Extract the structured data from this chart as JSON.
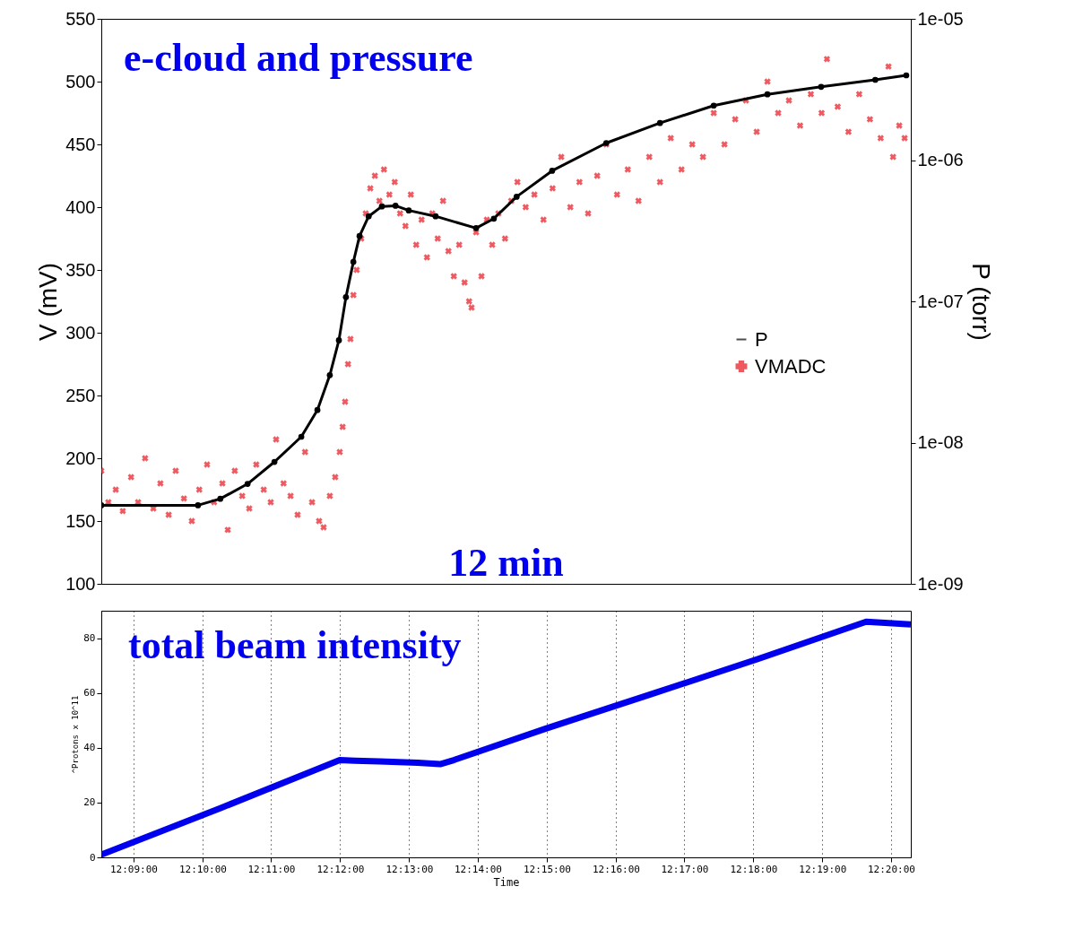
{
  "chart_data": [
    {
      "type": "scatter",
      "ylabel": "V (mV)",
      "y2label": "P (torr)",
      "xlim": [
        12.1422,
        12.3381
      ],
      "xticks": [
        {
          "value": 12.15,
          "label": null
        },
        {
          "value": 12.1667,
          "label": null
        },
        {
          "value": 12.1833,
          "label": null
        },
        {
          "value": 12.2,
          "label": null
        },
        {
          "value": 12.2167,
          "label": null
        },
        {
          "value": 12.2333,
          "label": null
        },
        {
          "value": 12.25,
          "label": null
        },
        {
          "value": 12.2667,
          "label": null
        },
        {
          "value": 12.2833,
          "label": null
        },
        {
          "value": 12.3,
          "label": null
        },
        {
          "value": 12.3167,
          "label": null
        },
        {
          "value": 12.3333,
          "label": null
        }
      ],
      "ylim": [
        100,
        550
      ],
      "yticks": [
        100,
        150,
        200,
        250,
        300,
        350,
        400,
        450,
        500,
        550
      ],
      "y2lim": [
        1e-09,
        1e-05
      ],
      "y2ticks": [
        {
          "value": 1e-09,
          "label": "1e-09"
        },
        {
          "value": 1e-08,
          "label": "1e-08"
        },
        {
          "value": 1e-07,
          "label": "1e-07"
        },
        {
          "value": 1e-06,
          "label": "1e-06"
        },
        {
          "value": 1e-05,
          "label": "1e-05"
        }
      ],
      "log": "y2",
      "tick_labels": "y",
      "legend": "right",
      "annotations": [
        "e-cloud and pressure",
        "12 min"
      ],
      "series": [
        {
          "name": "P",
          "type": "line",
          "axis": "y2",
          "color": "#000000",
          "marker": "circle",
          "x": [
            12.1422,
            12.1656,
            12.171,
            12.1776,
            12.1841,
            12.1906,
            12.1945,
            12.1975,
            12.1997,
            12.2014,
            12.2032,
            12.2047,
            12.2069,
            12.2101,
            12.2134,
            12.2166,
            12.2231,
            12.2329,
            12.2372,
            12.2427,
            12.2513,
            12.2644,
            12.2774,
            12.2904,
            12.3034,
            12.3164,
            12.3295,
            12.337
          ],
          "values": [
            3.6e-09,
            3.6e-09,
            4e-09,
            5.1e-09,
            7.3e-09,
            1.1e-08,
            1.7e-08,
            3e-08,
            5.3e-08,
            1.07e-07,
            1.9e-07,
            2.9e-07,
            4e-07,
            4.7e-07,
            4.75e-07,
            4.4e-07,
            4e-07,
            3.3e-07,
            3.85e-07,
            5.5e-07,
            8.4e-07,
            1.32e-06,
            1.83e-06,
            2.43e-06,
            2.92e-06,
            3.3e-06,
            3.7e-06,
            3.98e-06
          ]
        },
        {
          "name": "VMADC",
          "type": "scatter",
          "color": "#e8141c",
          "marker": "cross",
          "x": [
            12.1422,
            12.1439,
            12.1457,
            12.1474,
            12.1494,
            12.1511,
            12.1528,
            12.1548,
            12.1565,
            12.1585,
            12.1602,
            12.1622,
            12.1641,
            12.1659,
            12.1678,
            12.1695,
            12.1715,
            12.1728,
            12.1745,
            12.1763,
            12.178,
            12.1797,
            12.1815,
            12.1832,
            12.1845,
            12.1863,
            12.188,
            12.1897,
            12.1915,
            12.1932,
            12.1949,
            12.196,
            12.1975,
            12.1988,
            12.1999,
            12.2006,
            12.2012,
            12.2019,
            12.2025,
            12.2032,
            12.204,
            12.2051,
            12.2062,
            12.2073,
            12.2084,
            12.2095,
            12.2106,
            12.2119,
            12.2132,
            12.2145,
            12.2158,
            12.2171,
            12.2184,
            12.2197,
            12.221,
            12.2223,
            12.2236,
            12.2249,
            12.2262,
            12.2275,
            12.2288,
            12.2301,
            12.2312,
            12.2318,
            12.2329,
            12.2342,
            12.2355,
            12.2368,
            12.2383,
            12.2399,
            12.2414,
            12.2429,
            12.2449,
            12.247,
            12.2492,
            12.2514,
            12.2535,
            12.2557,
            12.2579,
            12.26,
            12.2622,
            12.2644,
            12.267,
            12.2696,
            12.2722,
            12.2748,
            12.2774,
            12.28,
            12.2826,
            12.2852,
            12.2878,
            12.2904,
            12.293,
            12.2956,
            12.2982,
            12.3008,
            12.3034,
            12.306,
            12.3086,
            12.3113,
            12.3139,
            12.3165,
            12.3178,
            12.3204,
            12.323,
            12.3256,
            12.3282,
            12.3308,
            12.3327,
            12.3338,
            12.3353,
            12.3366
          ],
          "values": [
            190,
            165,
            175,
            158,
            185,
            165,
            200,
            160,
            180,
            155,
            190,
            168,
            150,
            175,
            195,
            165,
            180,
            143,
            190,
            170,
            160,
            195,
            175,
            165,
            215,
            180,
            170,
            155,
            205,
            165,
            150,
            145,
            170,
            185,
            205,
            225,
            245,
            275,
            295,
            330,
            350,
            375,
            395,
            415,
            425,
            405,
            430,
            410,
            420,
            395,
            385,
            410,
            370,
            390,
            360,
            395,
            375,
            405,
            365,
            345,
            370,
            340,
            325,
            320,
            380,
            345,
            390,
            370,
            395,
            375,
            405,
            420,
            400,
            410,
            390,
            415,
            440,
            400,
            420,
            395,
            425,
            450,
            410,
            430,
            405,
            440,
            420,
            455,
            430,
            450,
            440,
            475,
            450,
            470,
            485,
            460,
            500,
            475,
            485,
            465,
            490,
            475,
            518,
            480,
            460,
            490,
            470,
            455,
            512,
            440,
            465,
            455
          ]
        }
      ]
    },
    {
      "type": "line",
      "xlabel": "Time",
      "ylabel": "^Protons x 10^11",
      "xlim": [
        12.1422,
        12.3381
      ],
      "ylim": [
        0,
        90
      ],
      "yticks": [
        0,
        20,
        40,
        60,
        80
      ],
      "xticks": [
        {
          "value": 12.15,
          "label": "12:09:00"
        },
        {
          "value": 12.1667,
          "label": "12:10:00"
        },
        {
          "value": 12.1833,
          "label": "12:11:00"
        },
        {
          "value": 12.2,
          "label": "12:12:00"
        },
        {
          "value": 12.2167,
          "label": "12:13:00"
        },
        {
          "value": 12.2333,
          "label": "12:14:00"
        },
        {
          "value": 12.25,
          "label": "12:15:00"
        },
        {
          "value": 12.2667,
          "label": "12:16:00"
        },
        {
          "value": 12.2833,
          "label": "12:17:00"
        },
        {
          "value": 12.3,
          "label": "12:18:00"
        },
        {
          "value": 12.3167,
          "label": "12:19:00"
        },
        {
          "value": 12.3333,
          "label": "12:20:00"
        }
      ],
      "grid": "x",
      "annotations": [
        "total beam intensity"
      ],
      "series": [
        {
          "color": "#0000ee",
          "x": [
            12.1422,
            12.1711,
            12.1999,
            12.2036,
            12.2095,
            12.2188,
            12.2242,
            12.2275,
            12.2498,
            12.2752,
            12.3013,
            12.3273,
            12.3327,
            12.3381
          ],
          "values": [
            1,
            18,
            35.5,
            35.3,
            35,
            34.5,
            34,
            35.5,
            47,
            59.5,
            72.5,
            86,
            85.5,
            85
          ]
        }
      ]
    }
  ]
}
